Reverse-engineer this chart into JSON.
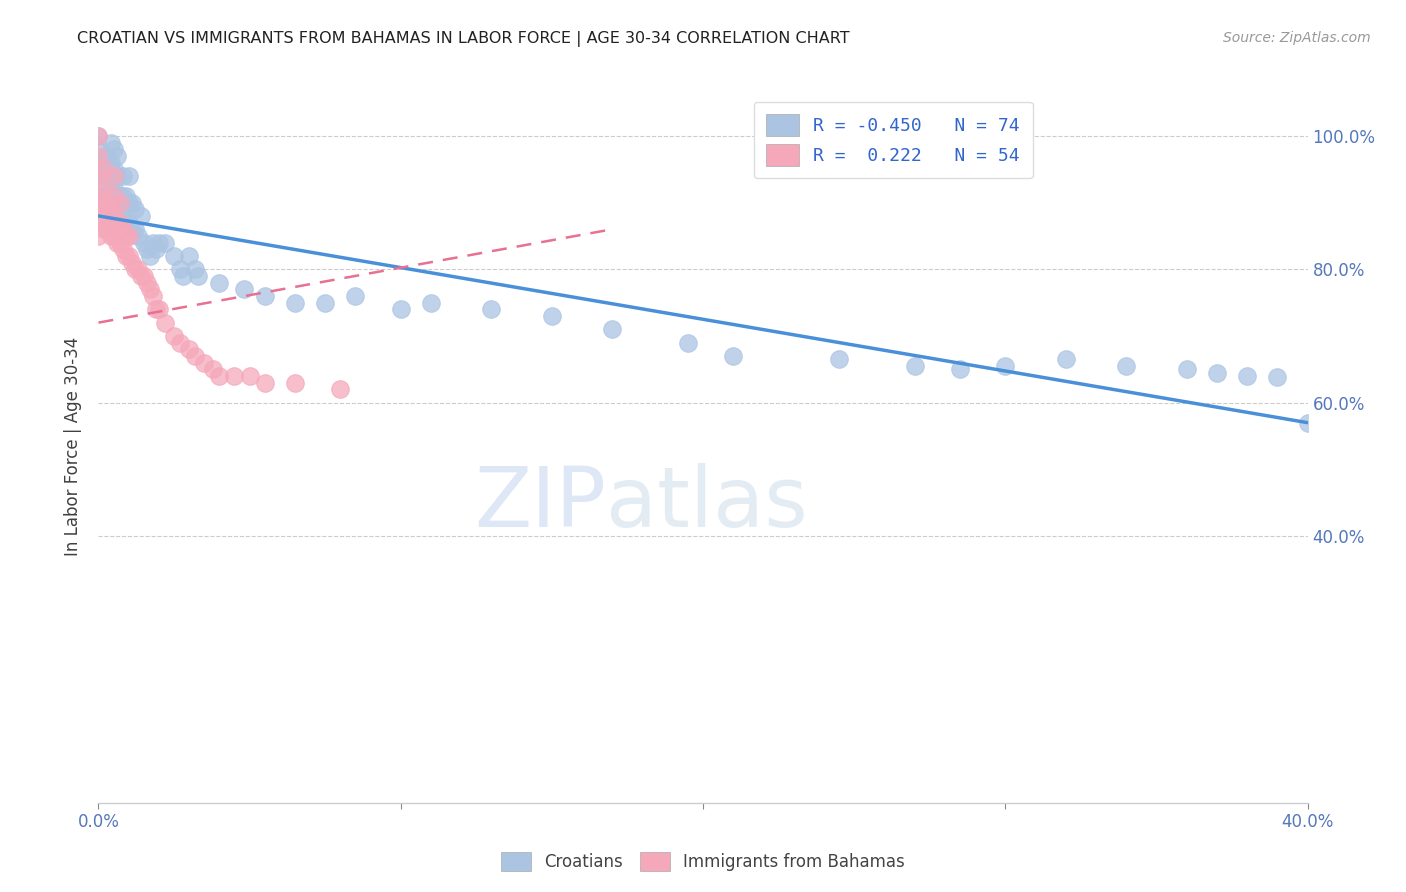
{
  "title": "CROATIAN VS IMMIGRANTS FROM BAHAMAS IN LABOR FORCE | AGE 30-34 CORRELATION CHART",
  "source": "Source: ZipAtlas.com",
  "ylabel_label": "In Labor Force | Age 30-34",
  "xmin": 0.0,
  "xmax": 0.4,
  "ymin": 0.0,
  "ymax": 1.07,
  "blue_R": -0.45,
  "blue_N": 74,
  "pink_R": 0.222,
  "pink_N": 54,
  "blue_color": "#aac4e2",
  "pink_color": "#f5a8ba",
  "blue_line_color": "#4a90d9",
  "pink_line_color": "#e87090",
  "watermark_zip": "ZIP",
  "watermark_atlas": "atlas",
  "legend_label_blue": "Croatians",
  "legend_label_pink": "Immigrants from Bahamas",
  "blue_scatter_x": [
    0.0,
    0.0,
    0.0,
    0.0,
    0.002,
    0.002,
    0.003,
    0.003,
    0.003,
    0.004,
    0.004,
    0.004,
    0.004,
    0.005,
    0.005,
    0.005,
    0.005,
    0.006,
    0.006,
    0.006,
    0.006,
    0.007,
    0.007,
    0.008,
    0.008,
    0.008,
    0.009,
    0.009,
    0.01,
    0.01,
    0.01,
    0.011,
    0.011,
    0.012,
    0.012,
    0.013,
    0.014,
    0.015,
    0.016,
    0.017,
    0.018,
    0.019,
    0.02,
    0.022,
    0.025,
    0.027,
    0.028,
    0.03,
    0.032,
    0.033,
    0.04,
    0.048,
    0.055,
    0.065,
    0.075,
    0.085,
    0.1,
    0.11,
    0.13,
    0.15,
    0.17,
    0.195,
    0.21,
    0.245,
    0.27,
    0.285,
    0.3,
    0.32,
    0.34,
    0.36,
    0.37,
    0.38,
    0.39,
    0.4
  ],
  "blue_scatter_y": [
    0.945,
    0.965,
    0.985,
    1.0,
    0.93,
    0.96,
    0.91,
    0.94,
    0.97,
    0.9,
    0.93,
    0.96,
    0.99,
    0.89,
    0.92,
    0.95,
    0.98,
    0.88,
    0.91,
    0.94,
    0.97,
    0.88,
    0.91,
    0.88,
    0.91,
    0.94,
    0.87,
    0.91,
    0.87,
    0.9,
    0.94,
    0.86,
    0.9,
    0.86,
    0.89,
    0.85,
    0.88,
    0.84,
    0.83,
    0.82,
    0.84,
    0.83,
    0.84,
    0.84,
    0.82,
    0.8,
    0.79,
    0.82,
    0.8,
    0.79,
    0.78,
    0.77,
    0.76,
    0.75,
    0.75,
    0.76,
    0.74,
    0.75,
    0.74,
    0.73,
    0.71,
    0.69,
    0.67,
    0.665,
    0.655,
    0.65,
    0.655,
    0.665,
    0.655,
    0.65,
    0.645,
    0.64,
    0.638,
    0.57
  ],
  "pink_scatter_x": [
    0.0,
    0.0,
    0.0,
    0.0,
    0.0,
    0.0,
    0.001,
    0.001,
    0.002,
    0.002,
    0.002,
    0.002,
    0.003,
    0.003,
    0.004,
    0.004,
    0.005,
    0.005,
    0.005,
    0.005,
    0.006,
    0.006,
    0.007,
    0.007,
    0.007,
    0.008,
    0.008,
    0.009,
    0.009,
    0.01,
    0.01,
    0.011,
    0.012,
    0.013,
    0.014,
    0.015,
    0.016,
    0.017,
    0.018,
    0.019,
    0.02,
    0.022,
    0.025,
    0.027,
    0.03,
    0.032,
    0.035,
    0.038,
    0.04,
    0.045,
    0.05,
    0.055,
    0.065,
    0.08
  ],
  "pink_scatter_y": [
    0.85,
    0.88,
    0.91,
    0.94,
    0.97,
    1.0,
    0.87,
    0.9,
    0.86,
    0.89,
    0.92,
    0.95,
    0.86,
    0.9,
    0.85,
    0.89,
    0.85,
    0.88,
    0.91,
    0.94,
    0.84,
    0.87,
    0.84,
    0.87,
    0.9,
    0.83,
    0.86,
    0.82,
    0.85,
    0.82,
    0.85,
    0.81,
    0.8,
    0.8,
    0.79,
    0.79,
    0.78,
    0.77,
    0.76,
    0.74,
    0.74,
    0.72,
    0.7,
    0.69,
    0.68,
    0.67,
    0.66,
    0.65,
    0.64,
    0.64,
    0.64,
    0.63,
    0.63,
    0.62
  ],
  "blue_trend_x0": 0.0,
  "blue_trend_x1": 0.4,
  "blue_trend_y0": 0.88,
  "blue_trend_y1": 0.57,
  "pink_trend_x0": 0.0,
  "pink_trend_x1": 0.17,
  "pink_trend_y0": 0.72,
  "pink_trend_y1": 0.86
}
